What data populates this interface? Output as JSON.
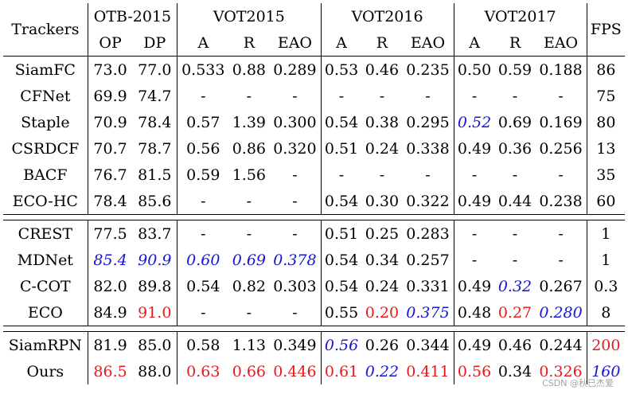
{
  "header": {
    "trackers": "Trackers",
    "groups": [
      "OTB-2015",
      "VOT2015",
      "VOT2016",
      "VOT2017"
    ],
    "fps": "FPS",
    "sub": [
      "OP",
      "DP",
      "A",
      "R",
      "EAO",
      "A",
      "R",
      "EAO",
      "A",
      "R",
      "EAO"
    ]
  },
  "groups": [
    {
      "rows": [
        {
          "name": "SiamFC",
          "cells": [
            {
              "v": "73.0"
            },
            {
              "v": "77.0"
            },
            {
              "v": "0.533"
            },
            {
              "v": "0.88"
            },
            {
              "v": "0.289"
            },
            {
              "v": "0.53"
            },
            {
              "v": "0.46"
            },
            {
              "v": "0.235"
            },
            {
              "v": "0.50"
            },
            {
              "v": "0.59"
            },
            {
              "v": "0.188"
            },
            {
              "v": "86"
            }
          ]
        },
        {
          "name": "CFNet",
          "cells": [
            {
              "v": "69.9"
            },
            {
              "v": "74.7"
            },
            {
              "v": "-"
            },
            {
              "v": "-"
            },
            {
              "v": "-"
            },
            {
              "v": "-"
            },
            {
              "v": "-"
            },
            {
              "v": "-"
            },
            {
              "v": "-"
            },
            {
              "v": "-"
            },
            {
              "v": "-"
            },
            {
              "v": "75"
            }
          ]
        },
        {
          "name": "Staple",
          "cells": [
            {
              "v": "70.9"
            },
            {
              "v": "78.4"
            },
            {
              "v": "0.57"
            },
            {
              "v": "1.39"
            },
            {
              "v": "0.300"
            },
            {
              "v": "0.54"
            },
            {
              "v": "0.38"
            },
            {
              "v": "0.295"
            },
            {
              "v": "0.52",
              "s": "blue"
            },
            {
              "v": "0.69"
            },
            {
              "v": "0.169"
            },
            {
              "v": "80"
            }
          ]
        },
        {
          "name": "CSRDCF",
          "cells": [
            {
              "v": "70.7"
            },
            {
              "v": "78.7"
            },
            {
              "v": "0.56"
            },
            {
              "v": "0.86"
            },
            {
              "v": "0.320"
            },
            {
              "v": "0.51"
            },
            {
              "v": "0.24"
            },
            {
              "v": "0.338"
            },
            {
              "v": "0.49"
            },
            {
              "v": "0.36"
            },
            {
              "v": "0.256"
            },
            {
              "v": "13"
            }
          ]
        },
        {
          "name": "BACF",
          "cells": [
            {
              "v": "76.7"
            },
            {
              "v": "81.5"
            },
            {
              "v": "0.59"
            },
            {
              "v": "1.56"
            },
            {
              "v": "-"
            },
            {
              "v": "-"
            },
            {
              "v": "-"
            },
            {
              "v": "-"
            },
            {
              "v": "-"
            },
            {
              "v": "-"
            },
            {
              "v": "-"
            },
            {
              "v": "35"
            }
          ]
        },
        {
          "name": "ECO-HC",
          "cells": [
            {
              "v": "78.4"
            },
            {
              "v": "85.6"
            },
            {
              "v": "-"
            },
            {
              "v": "-"
            },
            {
              "v": "-"
            },
            {
              "v": "0.54"
            },
            {
              "v": "0.30"
            },
            {
              "v": "0.322"
            },
            {
              "v": "0.49"
            },
            {
              "v": "0.44"
            },
            {
              "v": "0.238"
            },
            {
              "v": "60"
            }
          ]
        }
      ]
    },
    {
      "rows": [
        {
          "name": "CREST",
          "cells": [
            {
              "v": "77.5"
            },
            {
              "v": "83.7"
            },
            {
              "v": "-"
            },
            {
              "v": "-"
            },
            {
              "v": "-"
            },
            {
              "v": "0.51"
            },
            {
              "v": "0.25"
            },
            {
              "v": "0.283"
            },
            {
              "v": "-"
            },
            {
              "v": "-"
            },
            {
              "v": "-"
            },
            {
              "v": "1"
            }
          ]
        },
        {
          "name": "MDNet",
          "cells": [
            {
              "v": "85.4",
              "s": "blue"
            },
            {
              "v": "90.9",
              "s": "blue"
            },
            {
              "v": "0.60",
              "s": "blue"
            },
            {
              "v": "0.69",
              "s": "blue"
            },
            {
              "v": "0.378",
              "s": "blue"
            },
            {
              "v": "0.54"
            },
            {
              "v": "0.34"
            },
            {
              "v": "0.257"
            },
            {
              "v": "-"
            },
            {
              "v": "-"
            },
            {
              "v": "-"
            },
            {
              "v": "1"
            }
          ]
        },
        {
          "name": "C-COT",
          "cells": [
            {
              "v": "82.0"
            },
            {
              "v": "89.8"
            },
            {
              "v": "0.54"
            },
            {
              "v": "0.82"
            },
            {
              "v": "0.303"
            },
            {
              "v": "0.54"
            },
            {
              "v": "0.24"
            },
            {
              "v": "0.331"
            },
            {
              "v": "0.49"
            },
            {
              "v": "0.32",
              "s": "blue"
            },
            {
              "v": "0.267"
            },
            {
              "v": "0.3"
            }
          ]
        },
        {
          "name": "ECO",
          "cells": [
            {
              "v": "84.9"
            },
            {
              "v": "91.0",
              "s": "red"
            },
            {
              "v": "-"
            },
            {
              "v": "-"
            },
            {
              "v": "-"
            },
            {
              "v": "0.55"
            },
            {
              "v": "0.20",
              "s": "red"
            },
            {
              "v": "0.375",
              "s": "blue"
            },
            {
              "v": "0.48"
            },
            {
              "v": "0.27",
              "s": "red"
            },
            {
              "v": "0.280",
              "s": "blue"
            },
            {
              "v": "8"
            }
          ]
        }
      ]
    },
    {
      "rows": [
        {
          "name": "SiamRPN",
          "cells": [
            {
              "v": "81.9"
            },
            {
              "v": "85.0"
            },
            {
              "v": "0.58"
            },
            {
              "v": "1.13"
            },
            {
              "v": "0.349"
            },
            {
              "v": "0.56",
              "s": "blue"
            },
            {
              "v": "0.26"
            },
            {
              "v": "0.344"
            },
            {
              "v": "0.49"
            },
            {
              "v": "0.46"
            },
            {
              "v": "0.244"
            },
            {
              "v": "200",
              "s": "red"
            }
          ]
        },
        {
          "name": "Ours",
          "bold": true,
          "cells": [
            {
              "v": "86.5",
              "s": "red"
            },
            {
              "v": "88.0"
            },
            {
              "v": "0.63",
              "s": "red"
            },
            {
              "v": "0.66",
              "s": "red"
            },
            {
              "v": "0.446",
              "s": "red"
            },
            {
              "v": "0.61",
              "s": "red"
            },
            {
              "v": "0.22",
              "s": "blue"
            },
            {
              "v": "0.411",
              "s": "red"
            },
            {
              "v": "0.56",
              "s": "red"
            },
            {
              "v": "0.34"
            },
            {
              "v": "0.326",
              "s": "red"
            },
            {
              "v": "160",
              "s": "blue"
            }
          ]
        }
      ]
    }
  ],
  "watermark": "CSDN @秋已杰爱"
}
